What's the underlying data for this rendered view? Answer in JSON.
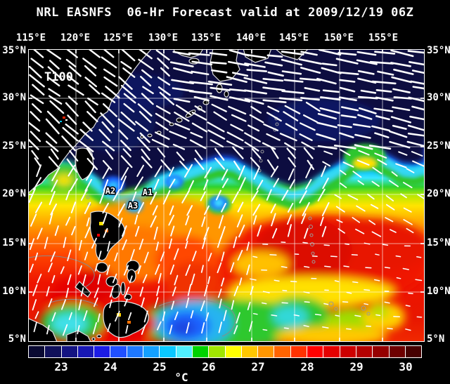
{
  "title": "NRL EASNFS  06-Hr Forecast valid at 2009/12/19 06Z",
  "axes": {
    "lon_labels": [
      "115°E",
      "120°E",
      "125°E",
      "130°E",
      "135°E",
      "140°E",
      "145°E",
      "150°E",
      "155°E"
    ],
    "lat_labels": [
      "35°N",
      "30°N",
      "25°N",
      "20°N",
      "15°N",
      "10°N",
      "5°N"
    ]
  },
  "annotations": {
    "field_label": "T100",
    "eddies": [
      {
        "label": "A2"
      },
      {
        "label": "A1"
      },
      {
        "label": "A3"
      }
    ]
  },
  "colorbar": {
    "unit": "°C",
    "tick_labels": [
      "23",
      "24",
      "25",
      "26",
      "27",
      "28",
      "29",
      "30"
    ],
    "cell_colors": [
      "#0a0a32",
      "#10105a",
      "#141482",
      "#1818b4",
      "#1c1ce6",
      "#2050ff",
      "#1e78ff",
      "#14a0ff",
      "#0ac8ff",
      "#50f0ff",
      "#00d200",
      "#a0e600",
      "#ffff00",
      "#ffc800",
      "#ff9600",
      "#ff6400",
      "#ff3200",
      "#ff0000",
      "#e60000",
      "#cd0000",
      "#b40000",
      "#960000",
      "#6e0000",
      "#460000"
    ]
  },
  "map_info": {
    "type": "sst_wind_forecast_map",
    "temperature_scale_c": [
      23,
      24,
      25,
      26,
      27,
      28,
      29,
      30
    ],
    "lon_range": [
      "115°E",
      "155°E"
    ],
    "lat_range": [
      "5°N",
      "35°N"
    ]
  }
}
